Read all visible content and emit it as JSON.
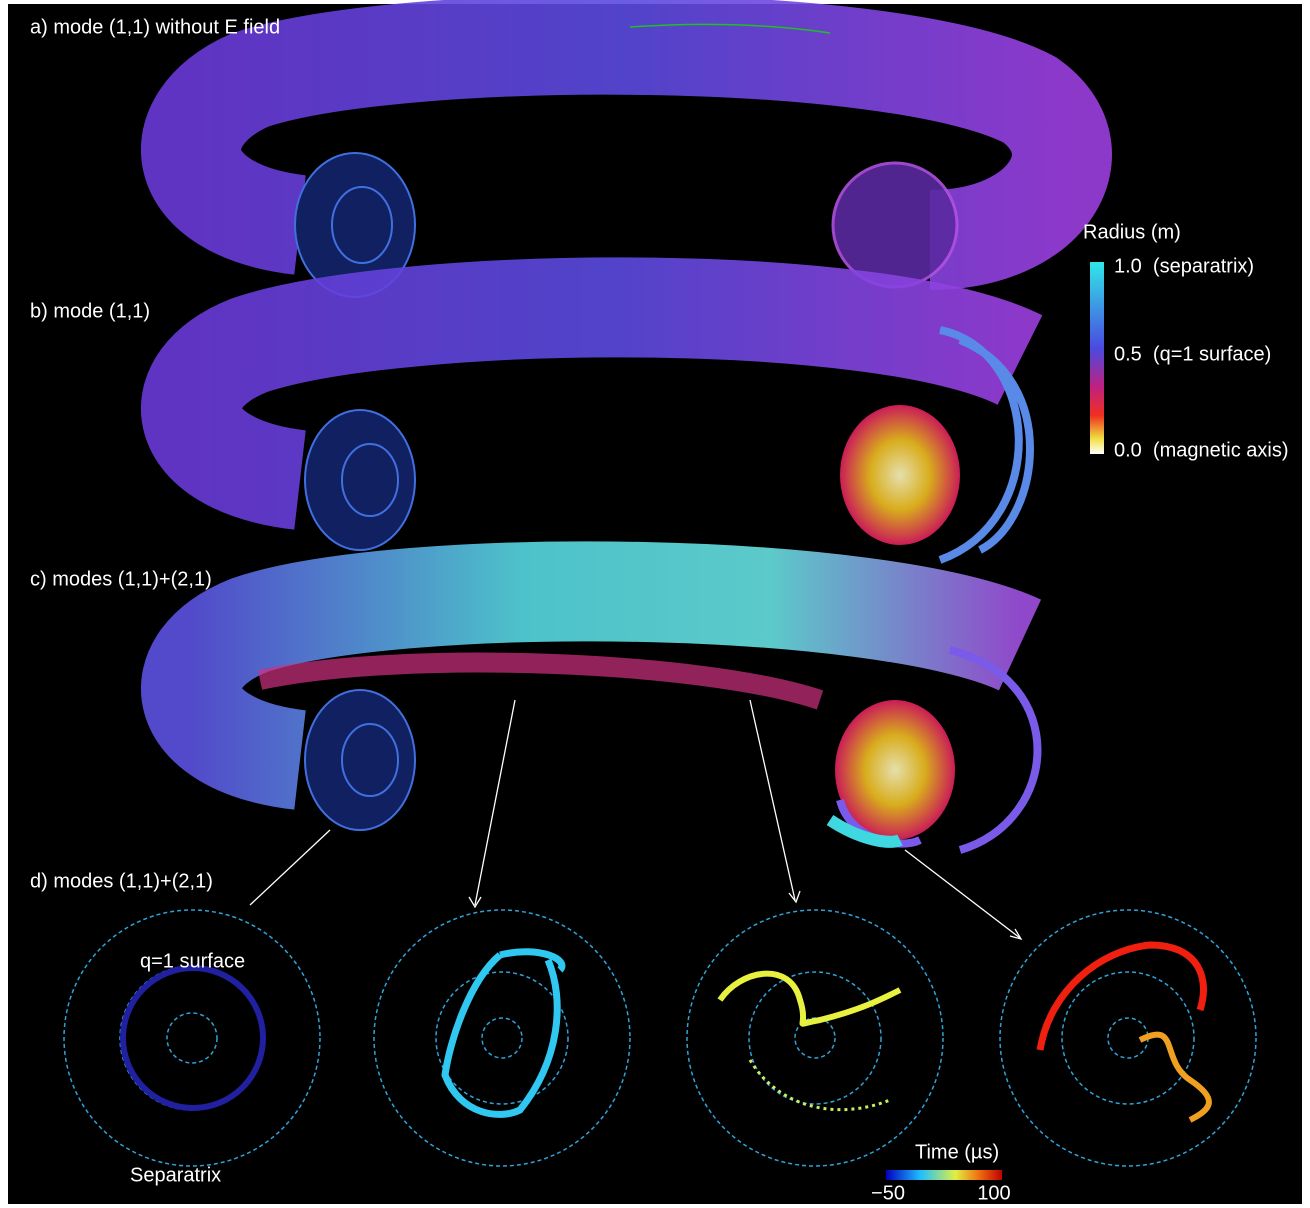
{
  "panels": [
    {
      "label": "a) mode (1,1) without E field"
    },
    {
      "label": "b) mode (1,1)"
    },
    {
      "label": "c) modes (1,1)+(2,1)"
    },
    {
      "label": "d) modes (1,1)+(2,1)"
    }
  ],
  "radius_colorbar": {
    "title": "Radius (m)",
    "labels": [
      "1.0  (separatrix)",
      "0.5  (q=1 surface)",
      "0.0  (magnetic axis)"
    ]
  },
  "cross_sections": {
    "q1_label": "q=1 surface",
    "separatrix_label": "Separatrix"
  },
  "time_colorbar": {
    "title": "Time (µs)",
    "labels": [
      "−50",
      "100"
    ]
  }
}
